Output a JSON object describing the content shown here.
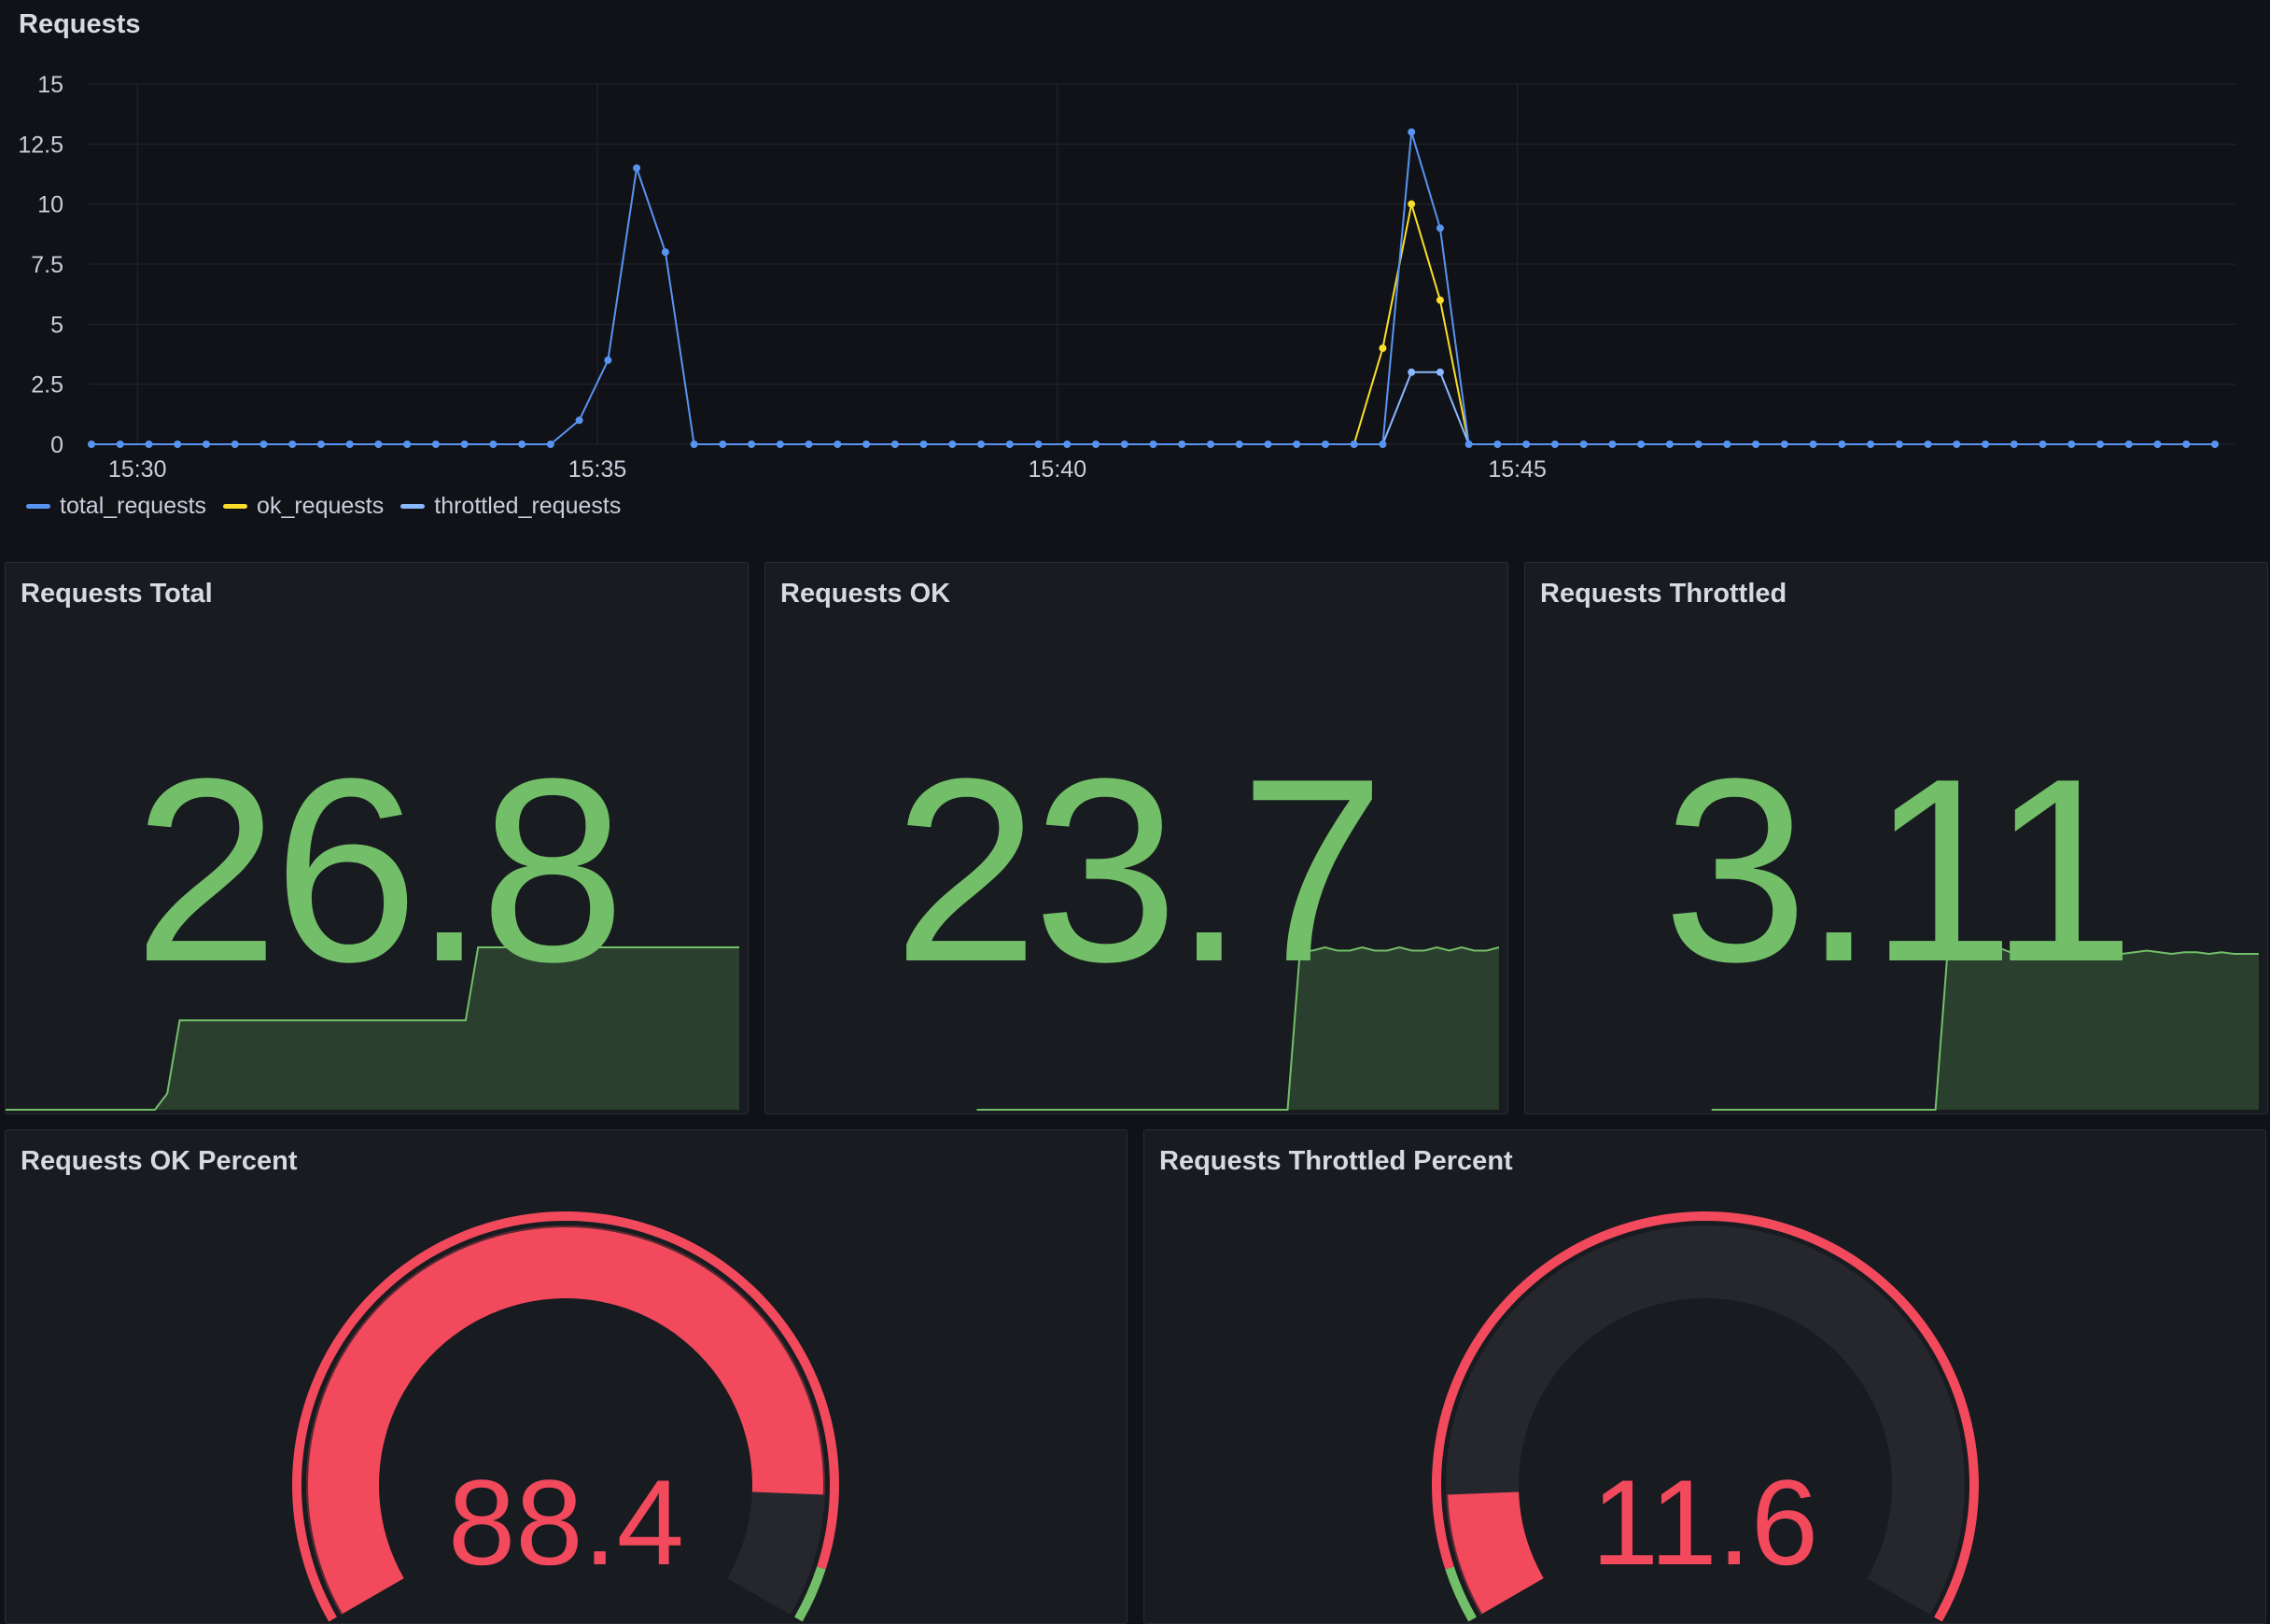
{
  "requests_panel": {
    "title": "Requests",
    "chart_data": {
      "type": "line",
      "x_start": "15:29:30",
      "x_step_seconds": 18.72,
      "x_ticks": [
        "15:30",
        "15:35",
        "15:40",
        "15:45"
      ],
      "y_ticks": [
        "0",
        "2.5",
        "5",
        "7.5",
        "10",
        "12.5",
        "15"
      ],
      "ylim": [
        0,
        15
      ],
      "series": [
        {
          "name": "total_requests",
          "color": "#5794f2",
          "values": [
            0,
            0,
            0,
            0,
            0,
            0,
            0,
            0,
            0,
            0,
            0,
            0,
            0,
            0,
            0,
            0,
            0,
            1,
            3.5,
            11.5,
            8,
            0,
            0,
            0,
            0,
            0,
            0,
            0,
            0,
            0,
            0,
            0,
            0,
            0,
            0,
            0,
            0,
            0,
            0,
            0,
            0,
            0,
            0,
            0,
            0,
            0,
            13,
            9,
            0,
            0,
            0,
            0,
            0,
            0,
            0,
            0,
            0,
            0,
            0,
            0,
            0,
            0,
            0,
            0,
            0,
            0,
            0,
            0,
            0,
            0,
            0,
            0,
            0,
            0,
            0
          ]
        },
        {
          "name": "ok_requests",
          "color": "#fade2a",
          "values": [
            0,
            0,
            0,
            0,
            0,
            0,
            0,
            0,
            0,
            0,
            0,
            0,
            0,
            0,
            0,
            0,
            0,
            0,
            0,
            0,
            0,
            0,
            0,
            0,
            0,
            0,
            0,
            0,
            0,
            0,
            0,
            0,
            0,
            0,
            0,
            0,
            0,
            0,
            0,
            0,
            0,
            0,
            0,
            0,
            0,
            4,
            10,
            6,
            0,
            0,
            0,
            0,
            0,
            0,
            0,
            0,
            0,
            0,
            0,
            0,
            0,
            0,
            0,
            0,
            0,
            0,
            0,
            0,
            0,
            0,
            0,
            0,
            0,
            0,
            0
          ]
        },
        {
          "name": "throttled_requests",
          "color": "#8ab8ff",
          "values": [
            0,
            0,
            0,
            0,
            0,
            0,
            0,
            0,
            0,
            0,
            0,
            0,
            0,
            0,
            0,
            0,
            0,
            0,
            0,
            0,
            0,
            0,
            0,
            0,
            0,
            0,
            0,
            0,
            0,
            0,
            0,
            0,
            0,
            0,
            0,
            0,
            0,
            0,
            0,
            0,
            0,
            0,
            0,
            0,
            0,
            0,
            3,
            3,
            0,
            0,
            0,
            0,
            0,
            0,
            0,
            0,
            0,
            0,
            0,
            0,
            0,
            0,
            0,
            0,
            0,
            0,
            0,
            0,
            0,
            0,
            0,
            0,
            0,
            0,
            0
          ]
        }
      ]
    }
  },
  "stats": [
    {
      "title": "Requests Total",
      "value": "26.8",
      "spark": [
        0,
        0,
        0,
        0,
        0,
        0,
        0,
        0,
        0,
        0,
        0,
        0,
        0,
        0.1,
        0.55,
        0.55,
        0.55,
        0.55,
        0.55,
        0.55,
        0.55,
        0.55,
        0.55,
        0.55,
        0.55,
        0.55,
        0.55,
        0.55,
        0.55,
        0.55,
        0.55,
        0.55,
        0.55,
        0.55,
        0.55,
        0.55,
        0.55,
        0.55,
        1,
        1,
        1,
        1,
        1,
        1,
        1,
        1,
        1,
        1,
        1,
        1,
        1,
        1,
        1,
        1,
        1,
        1,
        1,
        1,
        1,
        1
      ]
    },
    {
      "title": "Requests OK",
      "value": "23.7",
      "spark": [
        null,
        null,
        null,
        null,
        null,
        null,
        null,
        null,
        null,
        null,
        null,
        null,
        null,
        null,
        null,
        null,
        null,
        0,
        0,
        0,
        0,
        0,
        0,
        0,
        0,
        0,
        0,
        0,
        0,
        0,
        0,
        0,
        0,
        0,
        0,
        0,
        0,
        0,
        0,
        0,
        0,
        0,
        0,
        0.98,
        0.98,
        1,
        0.98,
        0.98,
        1,
        0.98,
        0.98,
        1,
        0.98,
        0.98,
        1,
        0.98,
        1,
        0.98,
        0.98,
        1
      ]
    },
    {
      "title": "Requests Throttled",
      "value": "3.11",
      "spark": [
        null,
        null,
        null,
        null,
        null,
        null,
        null,
        null,
        null,
        null,
        null,
        null,
        null,
        null,
        null,
        0,
        0,
        0,
        0,
        0,
        0,
        0,
        0,
        0,
        0,
        0,
        0,
        0,
        0,
        0,
        0,
        0,
        0,
        0,
        1,
        0.98,
        1,
        0.98,
        1,
        0.97,
        1,
        0.98,
        0.97,
        0.98,
        1,
        0.98,
        0.96,
        0.98,
        0.96,
        0.97,
        0.98,
        0.97,
        0.96,
        0.97,
        0.97,
        0.96,
        0.97,
        0.96,
        0.96,
        0.96
      ]
    }
  ],
  "gauges": [
    {
      "title": "Requests OK Percent",
      "value": "88.4",
      "fraction": 0.884
    },
    {
      "title": "Requests Throttled Percent",
      "value": "11.6",
      "fraction": 0.116
    }
  ],
  "colors": {
    "green": "#73bf69",
    "red": "#f2495c",
    "track": "#25272c"
  }
}
